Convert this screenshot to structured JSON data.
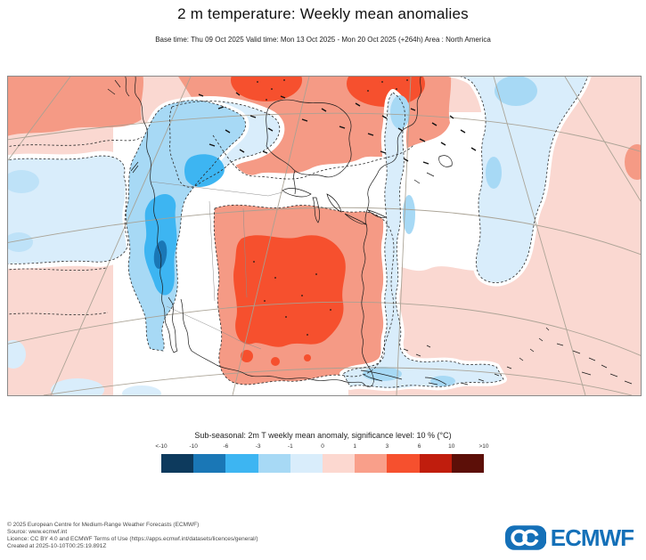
{
  "header": {
    "title": "2 m temperature: Weekly mean anomalies",
    "subtitle": "Base time: Thu 09 Oct 2025 Valid time: Mon 13 Oct 2025 - Mon 20 Oct 2025 (+264h) Area : North America"
  },
  "legend": {
    "title": "Sub-seasonal: 2m T weekly mean anomaly, significance level: 10 % (°C)",
    "ticks": [
      "<-10",
      "-10",
      "-6",
      "-3",
      "-1",
      "0",
      "1",
      "3",
      "6",
      "10",
      ">10"
    ],
    "colors": [
      "#0d3a5d",
      "#1a77b6",
      "#3db5f2",
      "#a7d9f5",
      "#d9edfb",
      "#fcd8d0",
      "#f99f8a",
      "#f6502e",
      "#c01d0d",
      "#5c0f08"
    ]
  },
  "chart_data": {
    "type": "heatmap",
    "title": "2 m temperature: Weekly mean anomalies",
    "units": "°C",
    "area": "North America",
    "scale_breaks": [
      "<-10",
      "-10",
      "-6",
      "-3",
      "-1",
      "0",
      "1",
      "3",
      "6",
      "10",
      ">10"
    ],
    "scale_colors": [
      "#0d3a5d",
      "#1a77b6",
      "#3db5f2",
      "#a7d9f5",
      "#d9edfb",
      "#fcd8d0",
      "#f99f8a",
      "#f6502e",
      "#c01d0d",
      "#5c0f08"
    ],
    "visible_anomaly_regions": [
      {
        "location": "Gulf of Alaska / NE Pacific top-left",
        "anomaly": "+1 to +3"
      },
      {
        "location": "Northern Canada / Hudson Bay",
        "anomaly": "+1 to +6, locally +3 to +6"
      },
      {
        "location": "NE Pacific off west coast",
        "anomaly": "-1 to 0"
      },
      {
        "location": "British Columbia / Alberta interior",
        "anomaly": "-3 to -6"
      },
      {
        "location": "California / Great Basin / Baja",
        "anomaly": "-3 to -10"
      },
      {
        "location": "Central / Southern US (Texas-Midwest)",
        "anomaly": "+3 to +6"
      },
      {
        "location": "Atlantic seaboard and western Atlantic",
        "anomaly": "-1 to 0"
      },
      {
        "location": "Subtropical Atlantic / Caribbean",
        "anomaly": "0 to +1"
      }
    ]
  },
  "footer": {
    "lines": [
      "© 2025 European Centre for Medium-Range Weather Forecasts (ECMWF)",
      "Source: www.ecmwf.int",
      "Licence: CC BY 4.0 and ECMWF Terms of Use (https://apps.ecmwf.int/datasets/licences/general/)",
      "Created at 2025-10-10T00:25:19.891Z"
    ]
  },
  "logo": {
    "text": "ECMWF",
    "color": "#1470b8"
  }
}
